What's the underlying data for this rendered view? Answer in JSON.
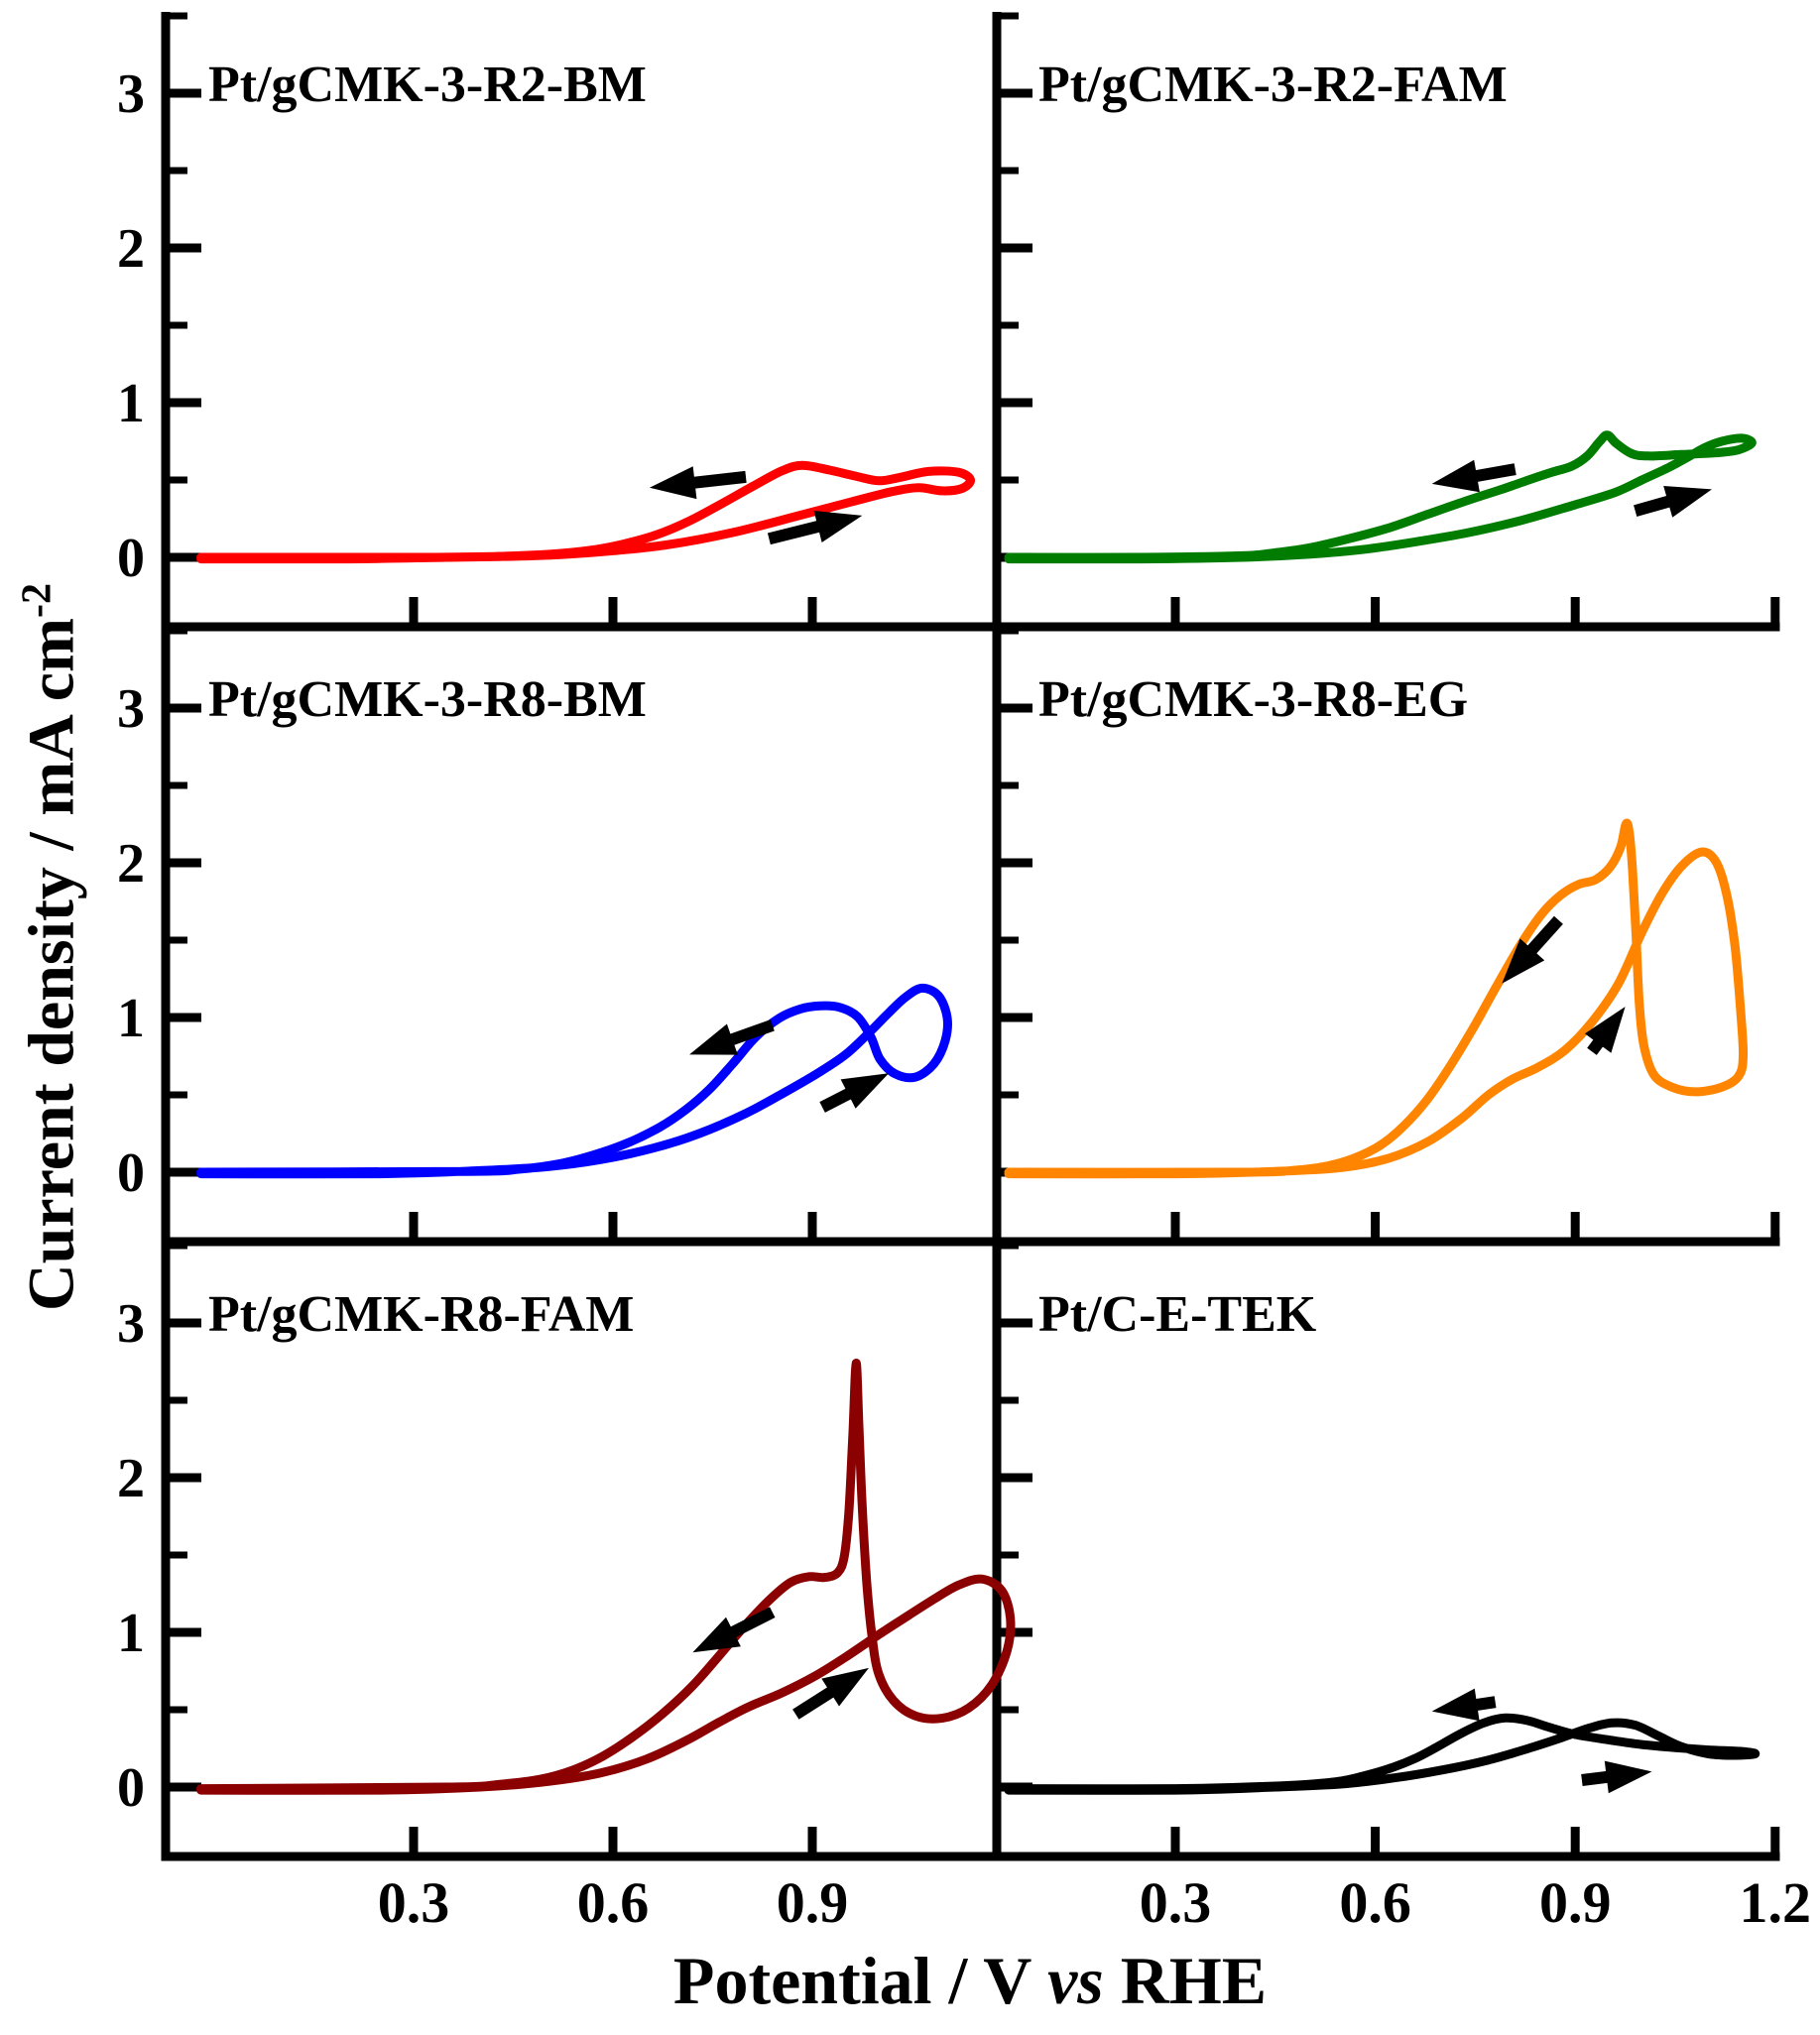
{
  "figure": {
    "y_axis_title": {
      "text": "Current density / mA cm",
      "sup": "-2"
    },
    "x_axis_title": {
      "pre": "Potential / V ",
      "vs": "vs",
      "post": " RHE"
    }
  },
  "chart_data": {
    "type": "line",
    "subtype": "cyclic-voltammetry",
    "layout": "3x2 grid of panels, shared axis style",
    "xlabel": "Potential / V vs RHE",
    "ylabel": "Current density / mA cm-2",
    "xlim": [
      -0.07,
      1.2
    ],
    "ylim": [
      -0.45,
      3.5
    ],
    "grid": false,
    "x_major_ticks": [
      0.3,
      0.6,
      0.9,
      1.2
    ],
    "x_tick_labels_left": [
      "0.3",
      "0.6",
      "0.9"
    ],
    "x_tick_labels_right": [
      "0.3",
      "0.6",
      "0.9",
      "1.2"
    ],
    "y_major_ticks": [
      0,
      1,
      2,
      3
    ],
    "y_minor_ticks": [
      0.5,
      1.5,
      2.5,
      3.5
    ],
    "panels": [
      {
        "label": "Pt/gCMK-3-R2-BM",
        "color": "#ff0000",
        "curve": [
          [
            -0.02,
            -0.01
          ],
          [
            0.2,
            -0.01
          ],
          [
            0.35,
            0.0
          ],
          [
            0.48,
            0.01
          ],
          [
            0.58,
            0.035
          ],
          [
            0.68,
            0.08
          ],
          [
            0.78,
            0.16
          ],
          [
            0.88,
            0.27
          ],
          [
            0.96,
            0.36
          ],
          [
            1.02,
            0.425
          ],
          [
            1.06,
            0.45
          ],
          [
            1.095,
            0.43
          ],
          [
            1.125,
            0.445
          ],
          [
            1.138,
            0.5
          ],
          [
            1.12,
            0.55
          ],
          [
            1.075,
            0.555
          ],
          [
            1.03,
            0.515
          ],
          [
            1.0,
            0.495
          ],
          [
            0.965,
            0.525
          ],
          [
            0.925,
            0.565
          ],
          [
            0.885,
            0.595
          ],
          [
            0.855,
            0.56
          ],
          [
            0.815,
            0.47
          ],
          [
            0.765,
            0.35
          ],
          [
            0.715,
            0.235
          ],
          [
            0.665,
            0.145
          ],
          [
            0.615,
            0.085
          ],
          [
            0.565,
            0.045
          ],
          [
            0.505,
            0.02
          ],
          [
            0.42,
            0.005
          ],
          [
            0.3,
            0.0
          ],
          [
            -0.02,
            0.0
          ]
        ],
        "arrows": {
          "backward": [
            0.8,
            0.52,
            0.655,
            0.45
          ],
          "forward": [
            0.835,
            0.12,
            0.975,
            0.27
          ]
        }
      },
      {
        "label": "Pt/gCMK-3-R2-FAM",
        "color": "#007c00",
        "curve": [
          [
            0.05,
            -0.01
          ],
          [
            0.25,
            -0.01
          ],
          [
            0.4,
            0.0
          ],
          [
            0.5,
            0.02
          ],
          [
            0.58,
            0.05
          ],
          [
            0.66,
            0.1
          ],
          [
            0.74,
            0.16
          ],
          [
            0.82,
            0.24
          ],
          [
            0.9,
            0.34
          ],
          [
            0.96,
            0.42
          ],
          [
            1.0,
            0.5
          ],
          [
            1.04,
            0.58
          ],
          [
            1.07,
            0.65
          ],
          [
            1.095,
            0.71
          ],
          [
            1.12,
            0.75
          ],
          [
            1.15,
            0.77
          ],
          [
            1.165,
            0.74
          ],
          [
            1.145,
            0.695
          ],
          [
            1.11,
            0.675
          ],
          [
            1.06,
            0.665
          ],
          [
            1.01,
            0.655
          ],
          [
            0.985,
            0.67
          ],
          [
            0.962,
            0.735
          ],
          [
            0.948,
            0.79
          ],
          [
            0.936,
            0.745
          ],
          [
            0.918,
            0.655
          ],
          [
            0.895,
            0.59
          ],
          [
            0.865,
            0.55
          ],
          [
            0.83,
            0.5
          ],
          [
            0.79,
            0.44
          ],
          [
            0.74,
            0.37
          ],
          [
            0.68,
            0.28
          ],
          [
            0.62,
            0.19
          ],
          [
            0.56,
            0.12
          ],
          [
            0.5,
            0.06
          ],
          [
            0.45,
            0.03
          ],
          [
            0.4,
            0.01
          ],
          [
            0.25,
            0.0
          ],
          [
            0.05,
            0.0
          ]
        ],
        "arrows": {
          "backward": [
            0.81,
            0.57,
            0.685,
            0.475
          ],
          "forward": [
            0.99,
            0.3,
            1.105,
            0.44
          ]
        }
      },
      {
        "label": "Pt/gCMK-3-R8-BM",
        "color": "#0000ff",
        "curve": [
          [
            -0.02,
            -0.01
          ],
          [
            0.25,
            -0.01
          ],
          [
            0.4,
            0.01
          ],
          [
            0.5,
            0.035
          ],
          [
            0.58,
            0.08
          ],
          [
            0.66,
            0.155
          ],
          [
            0.73,
            0.25
          ],
          [
            0.8,
            0.38
          ],
          [
            0.86,
            0.52
          ],
          [
            0.91,
            0.645
          ],
          [
            0.95,
            0.76
          ],
          [
            0.985,
            0.9
          ],
          [
            1.015,
            1.03
          ],
          [
            1.04,
            1.13
          ],
          [
            1.065,
            1.19
          ],
          [
            1.09,
            1.14
          ],
          [
            1.103,
            1.0
          ],
          [
            1.1,
            0.85
          ],
          [
            1.083,
            0.7
          ],
          [
            1.055,
            0.615
          ],
          [
            1.025,
            0.635
          ],
          [
            1.002,
            0.73
          ],
          [
            0.988,
            0.875
          ],
          [
            0.968,
            1.005
          ],
          [
            0.942,
            1.065
          ],
          [
            0.912,
            1.075
          ],
          [
            0.882,
            1.055
          ],
          [
            0.85,
            0.995
          ],
          [
            0.815,
            0.875
          ],
          [
            0.78,
            0.7
          ],
          [
            0.745,
            0.535
          ],
          [
            0.71,
            0.405
          ],
          [
            0.67,
            0.29
          ],
          [
            0.62,
            0.185
          ],
          [
            0.57,
            0.11
          ],
          [
            0.52,
            0.055
          ],
          [
            0.46,
            0.02
          ],
          [
            0.38,
            0.005
          ],
          [
            -0.02,
            0.0
          ]
        ],
        "arrows": {
          "backward": [
            0.84,
            0.95,
            0.715,
            0.76
          ],
          "forward": [
            0.915,
            0.42,
            1.015,
            0.64
          ]
        }
      },
      {
        "label": "Pt/gCMK-3-R8-EG",
        "color": "#ff8500",
        "curve": [
          [
            0.05,
            -0.01
          ],
          [
            0.3,
            -0.01
          ],
          [
            0.45,
            0.005
          ],
          [
            0.55,
            0.03
          ],
          [
            0.62,
            0.09
          ],
          [
            0.68,
            0.2
          ],
          [
            0.73,
            0.35
          ],
          [
            0.77,
            0.5
          ],
          [
            0.805,
            0.6
          ],
          [
            0.845,
            0.68
          ],
          [
            0.885,
            0.79
          ],
          [
            0.925,
            0.97
          ],
          [
            0.965,
            1.22
          ],
          [
            1.0,
            1.55
          ],
          [
            1.03,
            1.8
          ],
          [
            1.06,
            1.98
          ],
          [
            1.09,
            2.07
          ],
          [
            1.112,
            2.0
          ],
          [
            1.128,
            1.78
          ],
          [
            1.14,
            1.45
          ],
          [
            1.148,
            1.05
          ],
          [
            1.152,
            0.75
          ],
          [
            1.145,
            0.62
          ],
          [
            1.12,
            0.55
          ],
          [
            1.08,
            0.52
          ],
          [
            1.045,
            0.55
          ],
          [
            1.018,
            0.63
          ],
          [
            1.003,
            0.82
          ],
          [
            0.996,
            1.1
          ],
          [
            0.991,
            1.55
          ],
          [
            0.986,
            1.95
          ],
          [
            0.981,
            2.2
          ],
          [
            0.976,
            2.25
          ],
          [
            0.968,
            2.1
          ],
          [
            0.952,
            1.97
          ],
          [
            0.93,
            1.89
          ],
          [
            0.905,
            1.86
          ],
          [
            0.878,
            1.79
          ],
          [
            0.85,
            1.67
          ],
          [
            0.818,
            1.47
          ],
          [
            0.783,
            1.21
          ],
          [
            0.748,
            0.94
          ],
          [
            0.713,
            0.69
          ],
          [
            0.678,
            0.47
          ],
          [
            0.643,
            0.3
          ],
          [
            0.608,
            0.175
          ],
          [
            0.568,
            0.09
          ],
          [
            0.528,
            0.04
          ],
          [
            0.478,
            0.012
          ],
          [
            0.4,
            0.0
          ],
          [
            0.05,
            0.0
          ]
        ],
        "arrows": {
          "backward": [
            0.875,
            1.63,
            0.79,
            1.22
          ],
          "forward": [
            0.925,
            0.78,
            0.975,
            1.07
          ]
        }
      },
      {
        "label": "Pt/gCMK-R8-FAM",
        "color": "#8b0000",
        "curve": [
          [
            -0.02,
            -0.02
          ],
          [
            0.25,
            -0.02
          ],
          [
            0.4,
            0.0
          ],
          [
            0.5,
            0.035
          ],
          [
            0.58,
            0.09
          ],
          [
            0.65,
            0.18
          ],
          [
            0.71,
            0.3
          ],
          [
            0.76,
            0.42
          ],
          [
            0.805,
            0.52
          ],
          [
            0.855,
            0.61
          ],
          [
            0.905,
            0.72
          ],
          [
            0.95,
            0.84
          ],
          [
            1.0,
            0.985
          ],
          [
            1.045,
            1.11
          ],
          [
            1.085,
            1.22
          ],
          [
            1.12,
            1.305
          ],
          [
            1.155,
            1.345
          ],
          [
            1.185,
            1.27
          ],
          [
            1.198,
            1.09
          ],
          [
            1.193,
            0.88
          ],
          [
            1.17,
            0.66
          ],
          [
            1.135,
            0.51
          ],
          [
            1.095,
            0.445
          ],
          [
            1.055,
            0.46
          ],
          [
            1.022,
            0.56
          ],
          [
            1.0,
            0.73
          ],
          [
            0.99,
            0.97
          ],
          [
            0.982,
            1.32
          ],
          [
            0.975,
            1.82
          ],
          [
            0.97,
            2.35
          ],
          [
            0.966,
            2.74
          ],
          [
            0.961,
            2.28
          ],
          [
            0.955,
            1.78
          ],
          [
            0.948,
            1.49
          ],
          [
            0.938,
            1.385
          ],
          [
            0.918,
            1.355
          ],
          [
            0.895,
            1.36
          ],
          [
            0.868,
            1.325
          ],
          [
            0.838,
            1.22
          ],
          [
            0.8,
            1.05
          ],
          [
            0.76,
            0.85
          ],
          [
            0.72,
            0.655
          ],
          [
            0.675,
            0.475
          ],
          [
            0.63,
            0.325
          ],
          [
            0.585,
            0.2
          ],
          [
            0.54,
            0.11
          ],
          [
            0.49,
            0.05
          ],
          [
            0.43,
            0.018
          ],
          [
            0.35,
            0.0
          ],
          [
            -0.02,
            -0.01
          ]
        ],
        "arrows": {
          "backward": [
            0.84,
            1.13,
            0.72,
            0.87
          ],
          "forward": [
            0.875,
            0.47,
            0.985,
            0.77
          ]
        }
      },
      {
        "label": "Pt/C-E-TEK",
        "color": "#000000",
        "curve": [
          [
            0.05,
            -0.02
          ],
          [
            0.3,
            -0.02
          ],
          [
            0.45,
            0.0
          ],
          [
            0.55,
            0.02
          ],
          [
            0.63,
            0.06
          ],
          [
            0.7,
            0.11
          ],
          [
            0.77,
            0.175
          ],
          [
            0.83,
            0.25
          ],
          [
            0.88,
            0.32
          ],
          [
            0.92,
            0.38
          ],
          [
            0.955,
            0.415
          ],
          [
            0.99,
            0.4
          ],
          [
            1.025,
            0.33
          ],
          [
            1.06,
            0.26
          ],
          [
            1.1,
            0.215
          ],
          [
            1.14,
            0.205
          ],
          [
            1.17,
            0.215
          ],
          [
            1.15,
            0.23
          ],
          [
            1.1,
            0.24
          ],
          [
            1.05,
            0.255
          ],
          [
            1.0,
            0.275
          ],
          [
            0.95,
            0.305
          ],
          [
            0.9,
            0.34
          ],
          [
            0.862,
            0.385
          ],
          [
            0.828,
            0.43
          ],
          [
            0.795,
            0.447
          ],
          [
            0.763,
            0.415
          ],
          [
            0.728,
            0.345
          ],
          [
            0.695,
            0.265
          ],
          [
            0.662,
            0.19
          ],
          [
            0.628,
            0.13
          ],
          [
            0.59,
            0.08
          ],
          [
            0.55,
            0.04
          ],
          [
            0.5,
            0.018
          ],
          [
            0.44,
            0.005
          ],
          [
            0.3,
            -0.01
          ],
          [
            0.05,
            -0.01
          ]
        ],
        "arrows": {
          "backward": [
            0.78,
            0.55,
            0.685,
            0.49
          ],
          "forward": [
            0.91,
            0.045,
            1.015,
            0.1
          ]
        }
      }
    ]
  }
}
